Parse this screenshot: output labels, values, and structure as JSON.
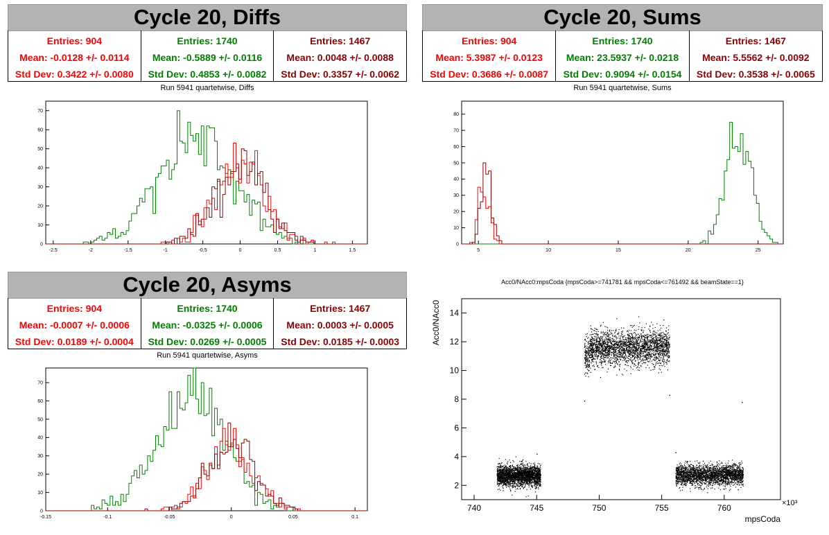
{
  "colors": {
    "red": "#ff0000",
    "green": "#008000",
    "darkred": "#8b0000"
  },
  "panels": [
    {
      "id": "diffs",
      "title": "Cycle 20, Diffs",
      "subtitle": "Run 5941 quartetwise, Diffs",
      "stats": [
        {
          "color": "red",
          "entries": "Entries: 904",
          "mean": "Mean: -0.0128 +/- 0.0114",
          "std": "Std Dev: 0.3422 +/- 0.0080"
        },
        {
          "color": "green",
          "entries": "Entries: 1740",
          "mean": "Mean: -0.5889 +/- 0.0116",
          "std": "Std Dev: 0.4853 +/- 0.0082"
        },
        {
          "color": "darkred",
          "entries": "Entries: 1467",
          "mean": "Mean: 0.0048 +/- 0.0088",
          "std": "Std Dev: 0.3357 +/- 0.0062"
        }
      ]
    },
    {
      "id": "sums",
      "title": "Cycle 20, Sums",
      "subtitle": "Run 5941 quartetwise, Sums",
      "stats": [
        {
          "color": "red",
          "entries": "Entries: 904",
          "mean": "Mean: 5.3987 +/- 0.0123",
          "std": "Std Dev: 0.3686 +/- 0.0087"
        },
        {
          "color": "green",
          "entries": "Entries: 1740",
          "mean": "Mean: 23.5937 +/- 0.0218",
          "std": "Std Dev: 0.9094 +/- 0.0154"
        },
        {
          "color": "darkred",
          "entries": "Entries: 1467",
          "mean": "Mean: 5.5562 +/- 0.0092",
          "std": "Std Dev: 0.3538 +/- 0.0065"
        }
      ]
    },
    {
      "id": "asyms",
      "title": "Cycle 20, Asyms",
      "subtitle": "Run 5941 quartetwise, Asyms",
      "stats": [
        {
          "color": "red",
          "entries": "Entries: 904",
          "mean": "Mean: -0.0007 +/- 0.0006",
          "std": "Std Dev: 0.0189 +/- 0.0004"
        },
        {
          "color": "green",
          "entries": "Entries: 1740",
          "mean": "Mean: -0.0325 +/- 0.0006",
          "std": "Std Dev: 0.0269 +/- 0.0005"
        },
        {
          "color": "darkred",
          "entries": "Entries: 1467",
          "mean": "Mean: 0.0003 +/- 0.0005",
          "std": "Std Dev: 0.0185 +/- 0.0003"
        }
      ]
    }
  ],
  "chart_data": [
    {
      "id": "diffs-hist",
      "type": "histogram",
      "xlim": [
        -2.6,
        1.7
      ],
      "ylim": [
        0,
        75
      ],
      "xticks": [
        "-2.5",
        "-2",
        "-1.5",
        "-1",
        "-0.5",
        "0",
        "0.5",
        "1",
        "1.5"
      ],
      "xtick_values": [
        -2.5,
        -2,
        -1.5,
        -1,
        -0.5,
        0,
        0.5,
        1,
        1.5
      ],
      "yticks": [
        "0",
        "10",
        "20",
        "30",
        "40",
        "50",
        "60",
        "70"
      ],
      "ytick_values": [
        0,
        10,
        20,
        30,
        40,
        50,
        60,
        70
      ],
      "series": [
        {
          "color": "green",
          "entries": 1740,
          "mean": -0.5889,
          "std": 0.4853,
          "peak": 70
        },
        {
          "color": "red",
          "entries": 904,
          "mean": -0.0128,
          "std": 0.3422,
          "peak": 48
        },
        {
          "color": "darkred",
          "entries": 1467,
          "mean": 0.0048,
          "std": 0.3357,
          "peak": 52
        }
      ]
    },
    {
      "id": "sums-hist",
      "type": "histogram",
      "xlim": [
        3.8,
        26.8
      ],
      "ylim": [
        0,
        88
      ],
      "xticks": [
        "5",
        "10",
        "15",
        "20",
        "25"
      ],
      "xtick_values": [
        5,
        10,
        15,
        20,
        25
      ],
      "yticks": [
        "0",
        "10",
        "20",
        "30",
        "40",
        "50",
        "60",
        "70",
        "80"
      ],
      "ytick_values": [
        0,
        10,
        20,
        30,
        40,
        50,
        60,
        70,
        80
      ],
      "series": [
        {
          "color": "green",
          "entries": 1740,
          "mean": 23.5937,
          "std": 0.9094,
          "peak": 84
        },
        {
          "color": "red",
          "entries": 904,
          "mean": 5.3987,
          "std": 0.3686,
          "peak": 45
        },
        {
          "color": "darkred",
          "entries": 1467,
          "mean": 5.5562,
          "std": 0.3538,
          "peak": 56
        }
      ]
    },
    {
      "id": "asyms-hist",
      "type": "histogram",
      "xlim": [
        -0.15,
        0.11
      ],
      "ylim": [
        0,
        78
      ],
      "xticks": [
        "-0.15",
        "-0.1",
        "-0.05",
        "0",
        "0.05",
        "0.1"
      ],
      "xtick_values": [
        -0.15,
        -0.1,
        -0.05,
        0,
        0.05,
        0.1
      ],
      "yticks": [
        "0",
        "10",
        "20",
        "30",
        "40",
        "50",
        "60",
        "70"
      ],
      "ytick_values": [
        0,
        10,
        20,
        30,
        40,
        50,
        60,
        70
      ],
      "series": [
        {
          "color": "green",
          "entries": 1740,
          "mean": -0.0325,
          "std": 0.0269,
          "peak": 75
        },
        {
          "color": "red",
          "entries": 904,
          "mean": -0.0007,
          "std": 0.0189,
          "peak": 42
        },
        {
          "color": "darkred",
          "entries": 1467,
          "mean": 0.0003,
          "std": 0.0185,
          "peak": 45
        }
      ]
    },
    {
      "id": "scatter",
      "type": "scatter",
      "title": "Acc0/NAcc0:mpsCoda {mpsCoda>=741781 && mpsCoda<=761492 && beamState==1}",
      "xlabel": "mpsCoda",
      "ylabel": "Acc0/NAcc0",
      "xexponent": "×10³",
      "xlim": [
        739.0,
        764.5
      ],
      "ylim": [
        1.0,
        15.0
      ],
      "xticks": [
        "740",
        "745",
        "750",
        "755",
        "760"
      ],
      "xtick_values": [
        740,
        745,
        750,
        755,
        760
      ],
      "yticks": [
        "2",
        "4",
        "6",
        "8",
        "10",
        "12",
        "14"
      ],
      "ytick_values": [
        2,
        4,
        6,
        8,
        10,
        12,
        14
      ],
      "bands": [
        {
          "x": [
            741.8,
            745.3
          ],
          "y_center": 2.7,
          "spread": 0.35
        },
        {
          "x": [
            748.8,
            755.6
          ],
          "y_center": 11.6,
          "spread": 0.6
        },
        {
          "x": [
            756.1,
            761.5
          ],
          "y_center": 2.75,
          "spread": 0.35
        }
      ]
    }
  ]
}
